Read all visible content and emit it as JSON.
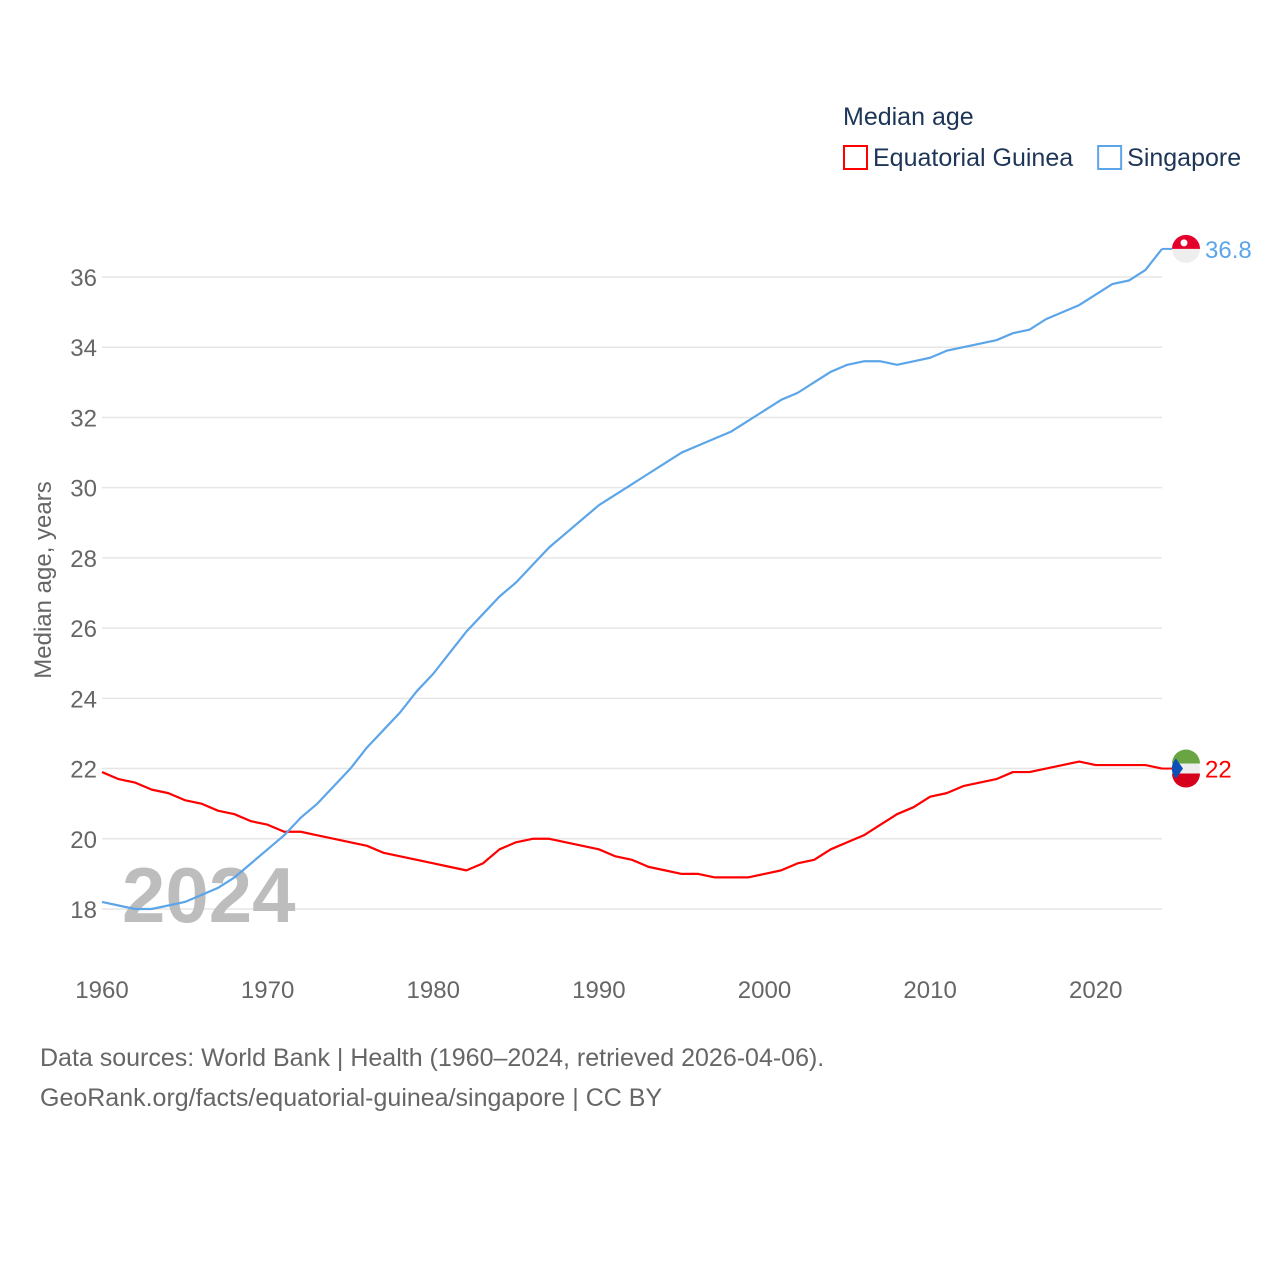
{
  "chart_data": {
    "type": "line",
    "title": "",
    "legend_title": "Median age",
    "legend_placement": "top-right",
    "xlabel": "",
    "ylabel": "Median age, years",
    "xlim": [
      1960,
      2024
    ],
    "ylim": [
      17,
      37
    ],
    "x_ticks": [
      "1960",
      "1970",
      "1980",
      "1990",
      "2000",
      "2010",
      "2020"
    ],
    "y_ticks": [
      "18",
      "20",
      "22",
      "24",
      "26",
      "28",
      "30",
      "32",
      "34",
      "36"
    ],
    "grid": true,
    "watermark_year": "2024",
    "x": [
      1960,
      1961,
      1962,
      1963,
      1964,
      1965,
      1966,
      1967,
      1968,
      1969,
      1970,
      1971,
      1972,
      1973,
      1974,
      1975,
      1976,
      1977,
      1978,
      1979,
      1980,
      1981,
      1982,
      1983,
      1984,
      1985,
      1986,
      1987,
      1988,
      1989,
      1990,
      1991,
      1992,
      1993,
      1994,
      1995,
      1996,
      1997,
      1998,
      1999,
      2000,
      2001,
      2002,
      2003,
      2004,
      2005,
      2006,
      2007,
      2008,
      2009,
      2010,
      2011,
      2012,
      2013,
      2014,
      2015,
      2016,
      2017,
      2018,
      2019,
      2020,
      2021,
      2022,
      2023,
      2024
    ],
    "series": [
      {
        "name": "Equatorial Guinea",
        "color": "#ff0000",
        "end_label": "22",
        "values": [
          21.9,
          21.7,
          21.6,
          21.4,
          21.3,
          21.1,
          21.0,
          20.8,
          20.7,
          20.5,
          20.4,
          20.2,
          20.2,
          20.1,
          20.0,
          19.9,
          19.8,
          19.6,
          19.5,
          19.4,
          19.3,
          19.2,
          19.1,
          19.3,
          19.7,
          19.9,
          20.0,
          20.0,
          19.9,
          19.8,
          19.7,
          19.5,
          19.4,
          19.2,
          19.1,
          19.0,
          19.0,
          18.9,
          18.9,
          18.9,
          19.0,
          19.1,
          19.3,
          19.4,
          19.7,
          19.9,
          20.1,
          20.4,
          20.7,
          20.9,
          21.2,
          21.3,
          21.5,
          21.6,
          21.7,
          21.9,
          21.9,
          22.0,
          22.1,
          22.2,
          22.1,
          22.1,
          22.1,
          22.1,
          22.0
        ]
      },
      {
        "name": "Singapore",
        "color": "#5ca5e8",
        "end_label": "36.8",
        "values": [
          18.2,
          18.1,
          18.0,
          18.0,
          18.1,
          18.2,
          18.4,
          18.6,
          18.9,
          19.3,
          19.7,
          20.1,
          20.6,
          21.0,
          21.5,
          22.0,
          22.6,
          23.1,
          23.6,
          24.2,
          24.7,
          25.3,
          25.9,
          26.4,
          26.9,
          27.3,
          27.8,
          28.3,
          28.7,
          29.1,
          29.5,
          29.8,
          30.1,
          30.4,
          30.7,
          31.0,
          31.2,
          31.4,
          31.6,
          31.9,
          32.2,
          32.5,
          32.7,
          33.0,
          33.3,
          33.5,
          33.6,
          33.6,
          33.5,
          33.6,
          33.7,
          33.9,
          34.0,
          34.1,
          34.2,
          34.4,
          34.5,
          34.8,
          35.0,
          35.2,
          35.5,
          35.8,
          35.9,
          36.2,
          36.8
        ]
      }
    ]
  },
  "footer": {
    "line1": "Data sources: World Bank | Health (1960–2024, retrieved 2026-04-06).",
    "line2": "GeoRank.org/facts/equatorial-guinea/singapore | CC BY"
  }
}
